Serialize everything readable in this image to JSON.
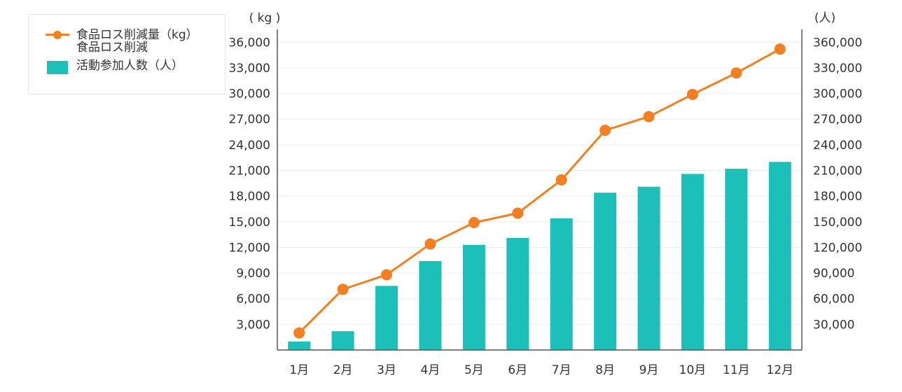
{
  "legend": {
    "line_label": "食品ロス削減量（kg）",
    "bar_label_line1": "食品ロス削減",
    "bar_label_line2": "活動参加人数（人）"
  },
  "chart_data": {
    "type": "bar",
    "categories": [
      "1月",
      "2月",
      "3月",
      "4月",
      "5月",
      "6月",
      "7月",
      "8月",
      "9月",
      "10月",
      "11月",
      "12月"
    ],
    "series": [
      {
        "name": "食品ロス削減量（kg）",
        "type": "line",
        "axis": "left",
        "color": "#f47f20",
        "values": [
          2000,
          7100,
          8800,
          12400,
          14900,
          16000,
          19900,
          25700,
          27300,
          29900,
          32400,
          35200
        ]
      },
      {
        "name": "食品ロス削減活動参加人数（人）",
        "type": "bar",
        "axis": "right",
        "color": "#1cc0b9",
        "values": [
          10000,
          22000,
          75000,
          104000,
          123000,
          131000,
          154000,
          184000,
          191000,
          206000,
          212000,
          220000
        ]
      }
    ],
    "y_left": {
      "unit": "( kg )",
      "range": [
        0,
        37500
      ],
      "ticks": [
        3000,
        6000,
        9000,
        12000,
        15000,
        18000,
        21000,
        24000,
        27000,
        30000,
        33000,
        36000
      ],
      "tick_labels": [
        "3,000",
        "6,000",
        "9,000",
        "12,000",
        "15,000",
        "18,000",
        "21,000",
        "24,000",
        "27,000",
        "30,000",
        "33,000",
        "36,000"
      ]
    },
    "y_right": {
      "unit": "(人)",
      "range": [
        0,
        375000
      ],
      "ticks": [
        30000,
        60000,
        90000,
        120000,
        150000,
        180000,
        210000,
        240000,
        270000,
        300000,
        330000,
        360000
      ],
      "tick_labels": [
        "30,000",
        "60,000",
        "90,000",
        "120,000",
        "150,000",
        "180,000",
        "210,000",
        "240,000",
        "270,000",
        "300,000",
        "330,000",
        "360,000"
      ]
    },
    "grid": true,
    "legend_position": "top-left"
  }
}
